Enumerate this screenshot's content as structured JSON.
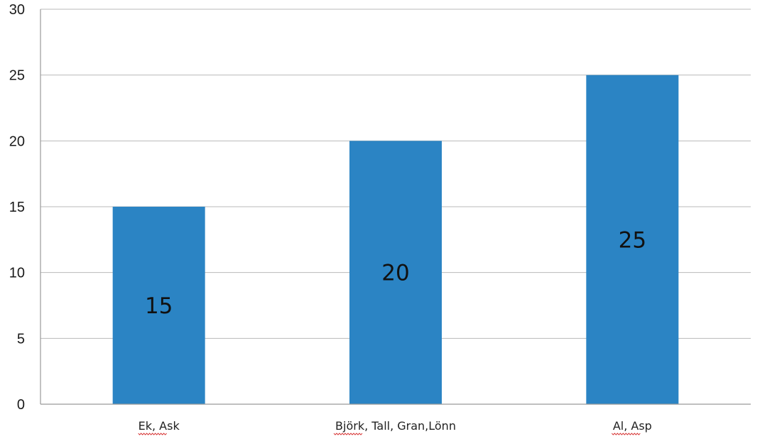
{
  "chart_data": {
    "type": "bar",
    "categories": [
      "Ek, Ask",
      "Björk, Tall, Gran,Lönn",
      "Al, Asp"
    ],
    "values": [
      15,
      20,
      25
    ],
    "data_labels": [
      "15",
      "20",
      "25"
    ],
    "ylim": [
      0,
      30
    ],
    "yticks": [
      0,
      5,
      10,
      15,
      20,
      25,
      30
    ],
    "grid": true,
    "legend": "none",
    "colors": {
      "bar": "#2b84c4",
      "grid": "#b9b9b9",
      "axis": "#9a9a9a",
      "spellcheck_underline": "#d83b3b"
    }
  }
}
